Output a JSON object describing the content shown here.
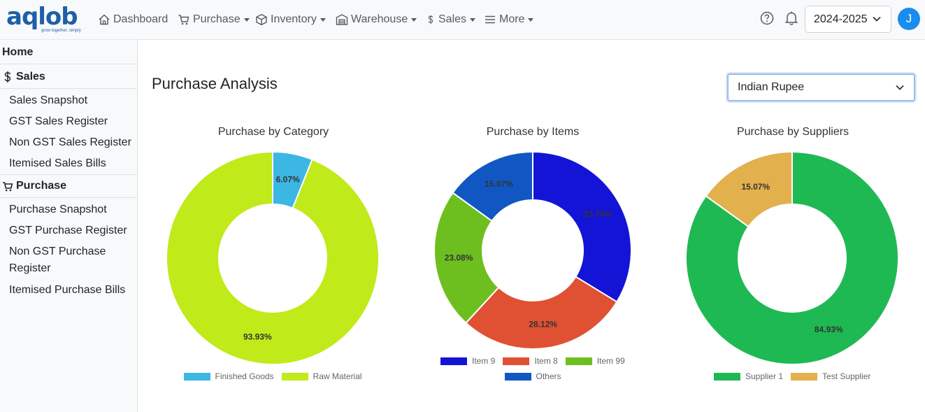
{
  "nav": {
    "logo": "aqlob",
    "tagline": "grow together, simply",
    "items": [
      {
        "label": "Dashboard",
        "icon": "home-icon",
        "caret": false
      },
      {
        "label": "Purchase",
        "icon": "cart-icon",
        "caret": true
      },
      {
        "label": "Inventory",
        "icon": "box-icon",
        "caret": true
      },
      {
        "label": "Warehouse",
        "icon": "warehouse-icon",
        "caret": true
      },
      {
        "label": "Sales",
        "icon": "dollar-icon",
        "caret": true
      },
      {
        "label": "More",
        "icon": "menu-icon",
        "caret": true
      }
    ],
    "year": "2024-2025",
    "avatar_initial": "J"
  },
  "sidebar": {
    "home": "Home",
    "sales_heading": "Sales",
    "sales_items": [
      "Sales Snapshot",
      "GST Sales Register",
      "Non GST Sales Register",
      "Itemised Sales Bills"
    ],
    "purchase_heading": "Purchase",
    "purchase_items": [
      "Purchase Snapshot",
      "GST Purchase Register",
      "Non GST Purchase",
      "Register",
      "Itemised Purchase Bills"
    ]
  },
  "main": {
    "title": "Purchase Analysis",
    "currency": "Indian Rupee"
  },
  "chart_data": [
    {
      "type": "pie",
      "title": "Purchase by Category",
      "categories": [
        "Finished Goods",
        "Raw Material"
      ],
      "values": [
        6.07,
        93.93
      ],
      "labels": [
        "6.07%",
        "93.93%"
      ],
      "colors": [
        "#3cb7e4",
        "#c0ea19"
      ],
      "legend": "bottom"
    },
    {
      "type": "pie",
      "title": "Purchase by Items",
      "categories": [
        "Item 9",
        "Item 8",
        "Item 99",
        "Others"
      ],
      "values": [
        33.74,
        28.12,
        23.08,
        15.07
      ],
      "labels": [
        "33.74%",
        "28.12%",
        "23.08%",
        "15.07%"
      ],
      "colors": [
        "#1414d6",
        "#e05033",
        "#6dbf1f",
        "#1157c4"
      ],
      "legend": "bottom"
    },
    {
      "type": "pie",
      "title": "Purchase by Suppliers",
      "categories": [
        "Supplier 1",
        "Test Supplier"
      ],
      "values": [
        84.93,
        15.07
      ],
      "labels": [
        "84.93%",
        "15.07%"
      ],
      "colors": [
        "#1fb954",
        "#e2b04d"
      ],
      "legend": "bottom"
    }
  ]
}
